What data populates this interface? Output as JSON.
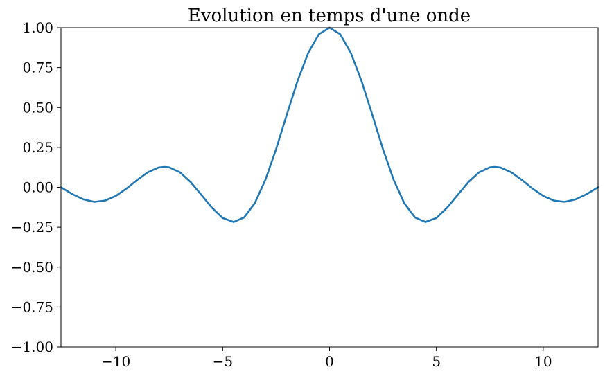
{
  "chart_data": {
    "type": "line",
    "title": "Evolution en temps d'une onde",
    "xlabel": "",
    "ylabel": "",
    "xlim": [
      -12.566,
      12.566
    ],
    "ylim": [
      -1.0,
      1.0
    ],
    "grid": false,
    "x_ticks": [
      {
        "value": -10,
        "label": "−10"
      },
      {
        "value": -5,
        "label": "−5"
      },
      {
        "value": 0,
        "label": "0"
      },
      {
        "value": 5,
        "label": "5"
      },
      {
        "value": 10,
        "label": "10"
      }
    ],
    "y_ticks": [
      {
        "value": 1.0,
        "label": "1.00"
      },
      {
        "value": 0.75,
        "label": "0.75"
      },
      {
        "value": 0.5,
        "label": "0.50"
      },
      {
        "value": 0.25,
        "label": "0.25"
      },
      {
        "value": 0.0,
        "label": "0.00"
      },
      {
        "value": -0.25,
        "label": "−0.25"
      },
      {
        "value": -0.5,
        "label": "−0.50"
      },
      {
        "value": -0.75,
        "label": "−0.75"
      },
      {
        "value": -1.0,
        "label": "−1.00"
      }
    ],
    "series": [
      {
        "color": "#1f77b4",
        "x": [
          -12.566,
          -12.0,
          -11.5,
          -11.0,
          -10.5,
          -10.0,
          -9.5,
          -9.0,
          -8.5,
          -8.0,
          -7.725,
          -7.5,
          -7.0,
          -6.5,
          -6.0,
          -5.5,
          -5.0,
          -4.493,
          -4.0,
          -3.5,
          -3.0,
          -2.5,
          -2.0,
          -1.5,
          -1.0,
          -0.5,
          0.0,
          0.5,
          1.0,
          1.5,
          2.0,
          2.5,
          3.0,
          3.5,
          4.0,
          4.493,
          5.0,
          5.5,
          6.0,
          6.5,
          7.0,
          7.5,
          7.725,
          8.0,
          8.5,
          9.0,
          9.5,
          10.0,
          10.5,
          11.0,
          11.5,
          12.0,
          12.566
        ],
        "y": [
          0.0,
          -0.045,
          -0.076,
          -0.091,
          -0.083,
          -0.054,
          -0.008,
          0.046,
          0.094,
          0.124,
          0.128,
          0.125,
          0.094,
          0.033,
          -0.047,
          -0.128,
          -0.192,
          -0.217,
          -0.189,
          -0.1,
          0.047,
          0.239,
          0.455,
          0.665,
          0.841,
          0.959,
          1.0,
          0.959,
          0.841,
          0.665,
          0.455,
          0.239,
          0.047,
          -0.1,
          -0.189,
          -0.217,
          -0.192,
          -0.128,
          -0.047,
          0.033,
          0.094,
          0.125,
          0.128,
          0.124,
          0.094,
          0.046,
          -0.008,
          -0.054,
          -0.083,
          -0.091,
          -0.076,
          -0.045,
          0.0
        ]
      }
    ]
  }
}
